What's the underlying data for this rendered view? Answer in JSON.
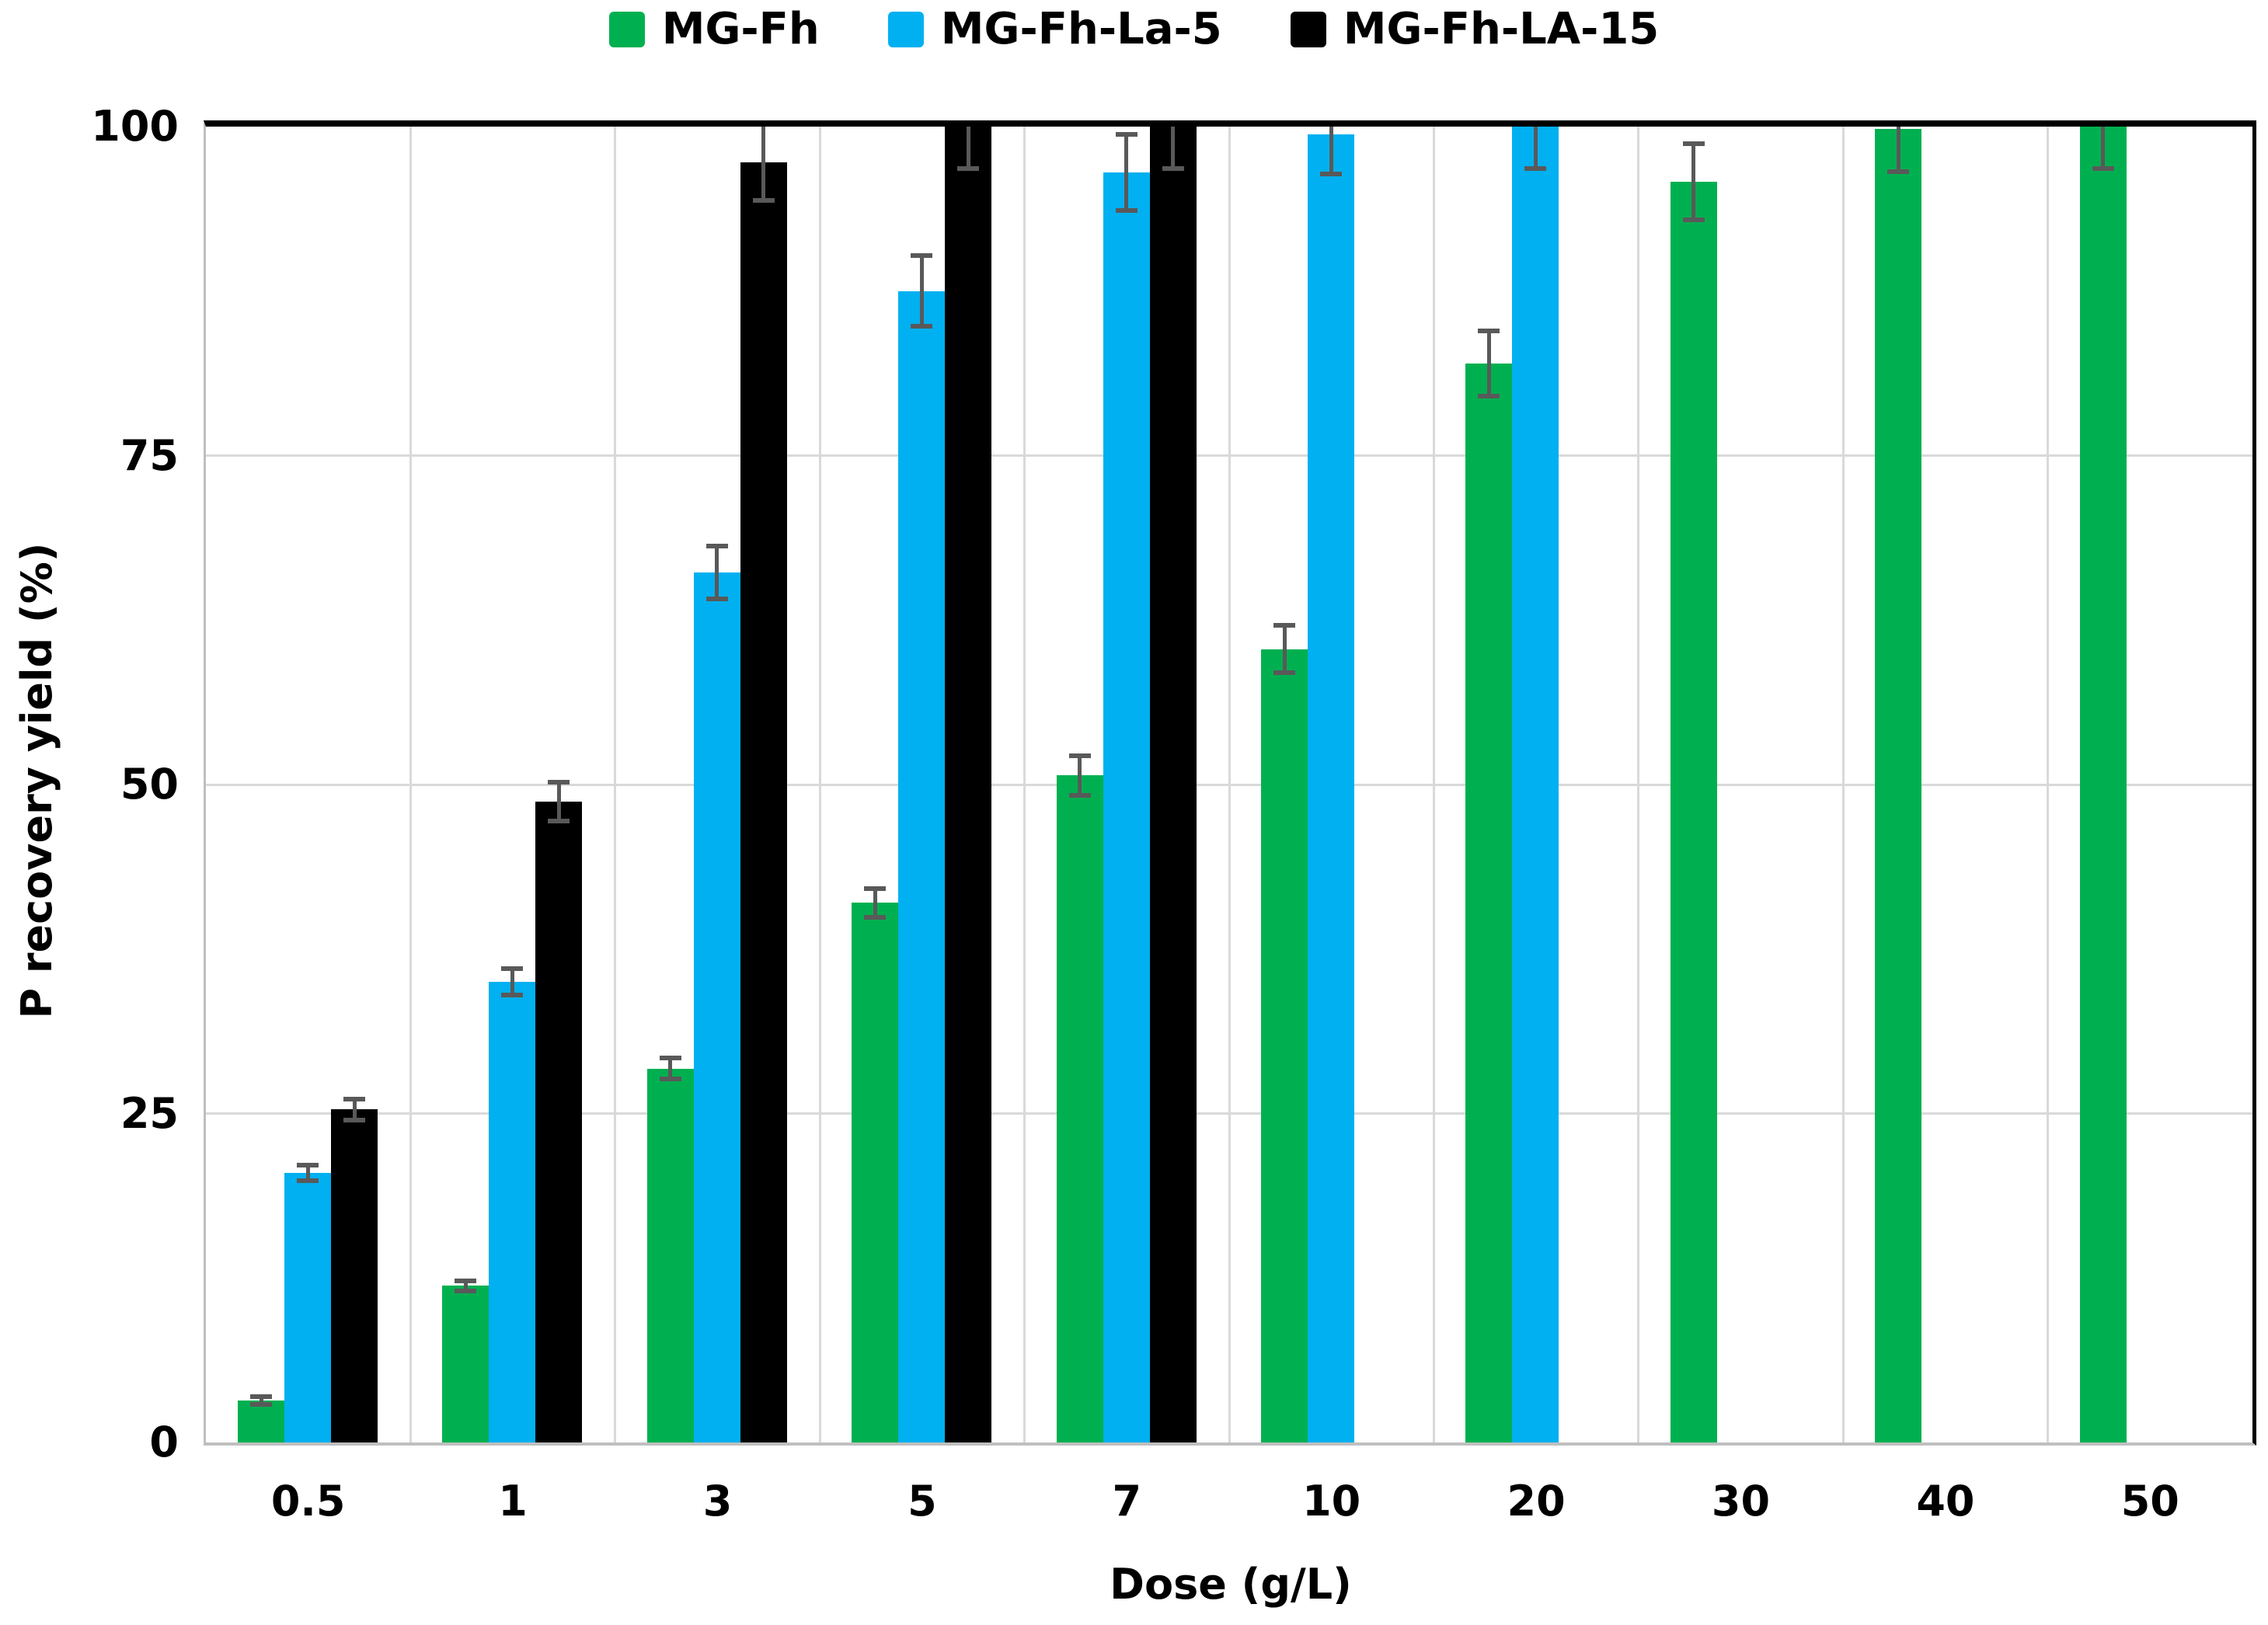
{
  "chart_data": {
    "type": "bar",
    "title": "",
    "xlabel": "Dose (g/L)",
    "ylabel": "P recovery yield (%)",
    "ylim": [
      0,
      100
    ],
    "yticks": [
      0,
      25,
      50,
      75,
      100
    ],
    "grid": "on",
    "legend_position": "top-center",
    "categories": [
      "0.5",
      "1",
      "3",
      "5",
      "7",
      "10",
      "20",
      "30",
      "40",
      "50"
    ],
    "series": [
      {
        "name": "MG-Fh",
        "color": "#00B050",
        "values": [
          3.2,
          11.9,
          28.4,
          41.0,
          50.7,
          60.3,
          82.0,
          95.8,
          99.8,
          100.0
        ],
        "errors": [
          0.3,
          0.4,
          0.8,
          1.1,
          1.5,
          1.8,
          2.5,
          2.9,
          3.2,
          3.2
        ]
      },
      {
        "name": "MG-Fh-La-5",
        "color": "#00B0F0",
        "values": [
          20.5,
          35.0,
          66.1,
          87.5,
          96.5,
          99.4,
          100.0,
          null,
          null,
          null
        ],
        "errors": [
          0.6,
          1.0,
          2.0,
          2.7,
          2.9,
          3.0,
          3.2,
          null,
          null,
          null
        ]
      },
      {
        "name": "MG-Fh-LA-15",
        "color": "#000000",
        "values": [
          25.3,
          48.7,
          97.3,
          100.0,
          100.0,
          null,
          null,
          null,
          null,
          null
        ],
        "errors": [
          0.8,
          1.5,
          2.9,
          3.2,
          3.2,
          null,
          null,
          null,
          null,
          null
        ]
      }
    ],
    "style_colors": {
      "gridline": "#D9D9D9",
      "axis_line": "#BFBFBF",
      "plot_border": "#000000",
      "error_bar": "#595959",
      "background": "#FFFFFF"
    }
  }
}
